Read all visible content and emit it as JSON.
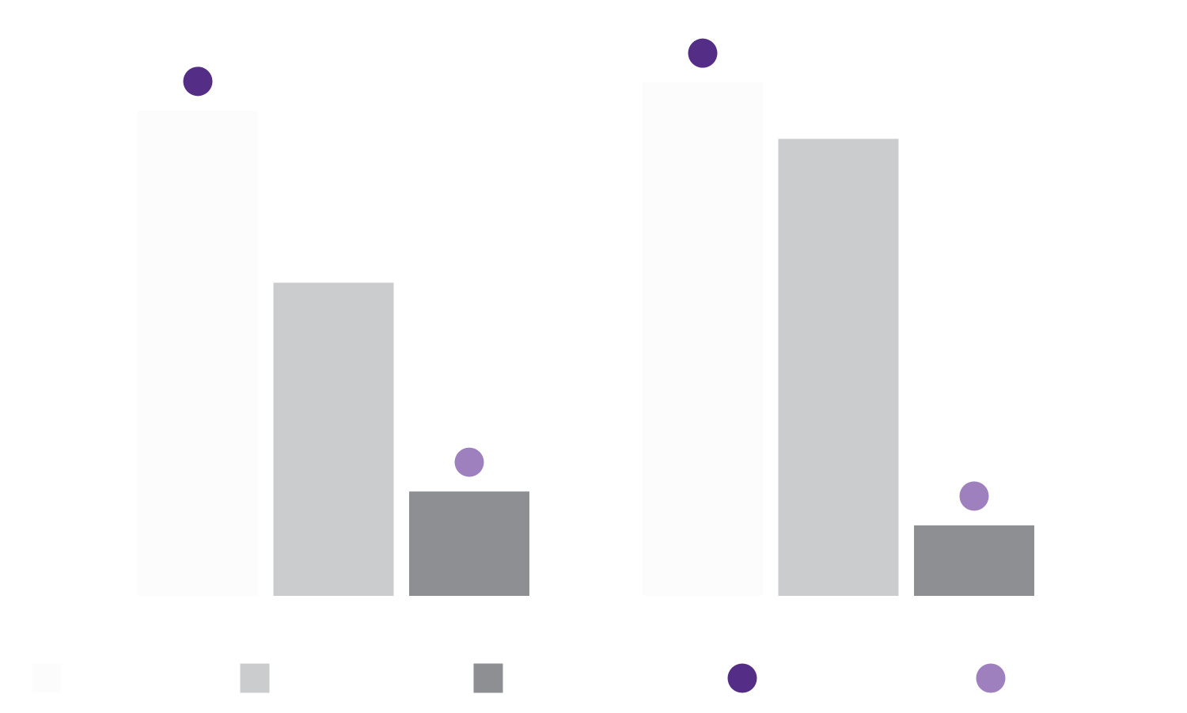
{
  "chart_data": {
    "type": "bar",
    "title": "",
    "xlabel": "",
    "ylabel": "",
    "ylim": [
      0,
      100
    ],
    "grid": false,
    "legend_position": "bottom",
    "categories": [
      "",
      ""
    ],
    "series": [
      {
        "values": [
          86,
          91
        ],
        "color": "#FCFCFC",
        "marker": "square"
      },
      {
        "values": [
          55.5,
          81
        ],
        "color": "#CBCCCE",
        "marker": "square"
      },
      {
        "values": [
          18.5,
          12.5
        ],
        "color": "#8E8F92",
        "marker": "square"
      }
    ],
    "point_series": [
      {
        "values": [
          91,
          96
        ],
        "color": "#542D87",
        "marker": "circle"
      },
      {
        "values": [
          23,
          17
        ],
        "color": "#9D80BD",
        "marker": "circle"
      }
    ],
    "point_series_attach": [
      {
        "series_index": 0,
        "category_index": 0,
        "point_index": 0
      },
      {
        "series_index": 0,
        "category_index": 1,
        "point_index": 0
      },
      {
        "series_index": 2,
        "category_index": 0,
        "point_index": 1
      },
      {
        "series_index": 2,
        "category_index": 1,
        "point_index": 1
      }
    ],
    "legend": [
      {
        "label": "",
        "color": "#FCFCFC",
        "marker": "square"
      },
      {
        "label": "",
        "color": "#CBCCCE",
        "marker": "square"
      },
      {
        "label": "",
        "color": "#8E8F92",
        "marker": "square"
      },
      {
        "label": "",
        "color": "#542D87",
        "marker": "circle"
      },
      {
        "label": "",
        "color": "#9D80BD",
        "marker": "circle"
      }
    ]
  }
}
